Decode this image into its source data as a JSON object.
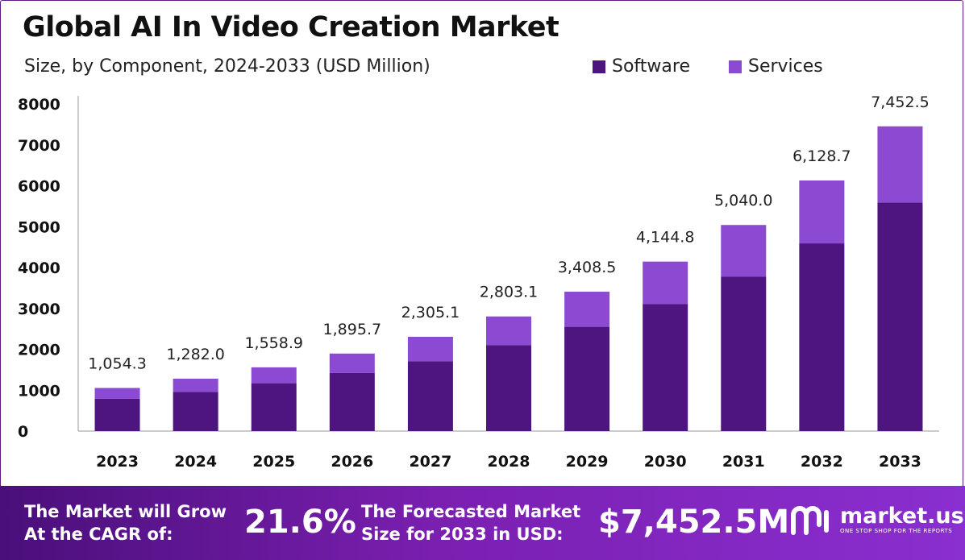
{
  "title": "Global AI In Video Creation Market",
  "subtitle": "Size, by Component, 2024-2033 (USD Million)",
  "legend": [
    {
      "label": "Software",
      "color": "#4e1580"
    },
    {
      "label": "Services",
      "color": "#8b4ad1"
    }
  ],
  "chart_data": {
    "type": "bar",
    "stacked": true,
    "title": "Global AI In Video Creation Market",
    "subtitle": "Size, by Component, 2024-2033 (USD Million)",
    "categories": [
      "2023",
      "2024",
      "2025",
      "2026",
      "2027",
      "2028",
      "2029",
      "2030",
      "2031",
      "2032",
      "2033"
    ],
    "series": [
      {
        "name": "Software",
        "color": "#4e1580",
        "values": [
          790,
          960,
          1170,
          1420,
          1710,
          2100,
          2550,
          3110,
          3780,
          4590,
          5590
        ]
      },
      {
        "name": "Services",
        "color": "#8b4ad1",
        "values": [
          264.3,
          322.0,
          388.9,
          475.7,
          595.1,
          703.1,
          858.5,
          1034.8,
          1260.0,
          1538.7,
          1862.5
        ]
      }
    ],
    "totals": [
      1054.3,
      1282.0,
      1558.9,
      1895.7,
      2305.1,
      2803.1,
      3408.5,
      4144.8,
      5040.0,
      6128.7,
      7452.5
    ],
    "total_labels": [
      "1,054.3",
      "1,282.0",
      "1,558.9",
      "1,895.7",
      "2,305.1",
      "2,803.1",
      "3,408.5",
      "4,144.8",
      "5,040.0",
      "6,128.7",
      "7,452.5"
    ],
    "yticks": [
      "0",
      "1000",
      "2000",
      "3000",
      "4000",
      "5000",
      "6000",
      "7000",
      "8000"
    ],
    "ylim": [
      0,
      8000
    ],
    "xlabel": "",
    "ylabel": "",
    "grid": false,
    "legend_position": "top-right"
  },
  "footer": {
    "cagr_label_line1": "The Market will Grow",
    "cagr_label_line2": "At the CAGR of:",
    "cagr_value": "21.6%",
    "forecast_label_line1": "The Forecasted Market",
    "forecast_label_line2": "Size for 2033 in USD:",
    "forecast_value": "$7,452.5M",
    "brand_name": "market.us",
    "brand_tagline": "ONE STOP SHOP FOR THE REPORTS",
    "logo_icon": "market-us-logo-icon"
  }
}
